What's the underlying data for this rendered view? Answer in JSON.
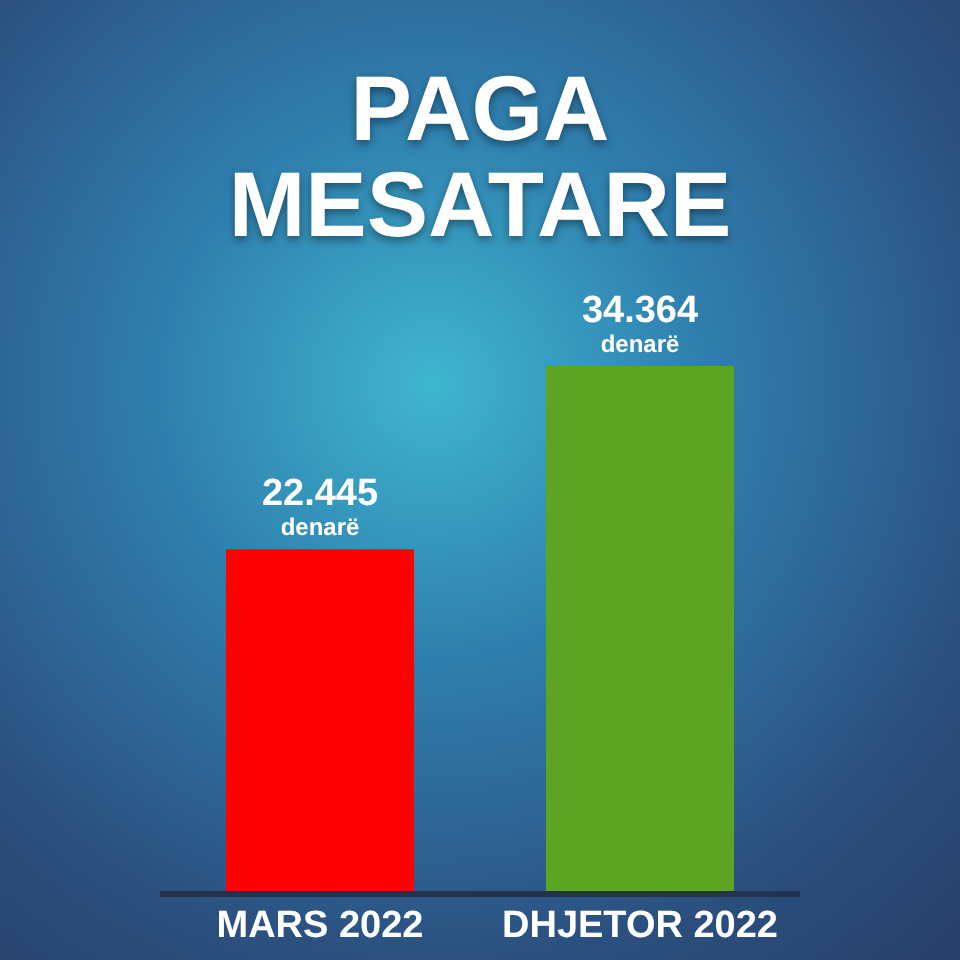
{
  "chart_data": {
    "type": "bar",
    "title": "PAGA MESATARE",
    "categories": [
      "MARS 2022",
      "DHJETOR 2022"
    ],
    "values": [
      22445,
      34364
    ],
    "colors": [
      "#ff0000",
      "#5ea423"
    ],
    "value_labels": [
      "22.445 denarë",
      "34.364 denarë"
    ]
  }
}
